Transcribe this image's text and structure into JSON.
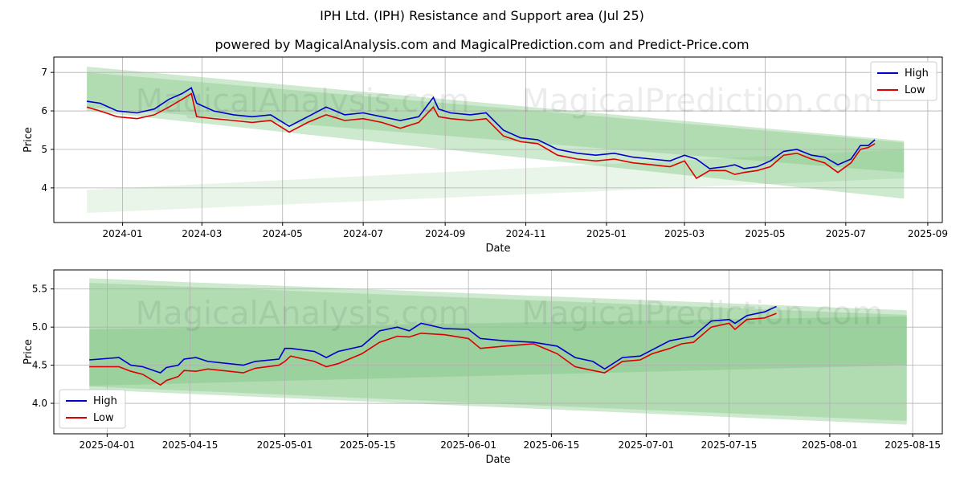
{
  "header": {
    "title": "IPH Ltd. (IPH) Resistance and Support area (Jul 25)",
    "subtitle": "powered by MagicalAnalysis.com and MagicalPrediction.com and Predict-Price.com"
  },
  "watermark": {
    "left": "MagicalAnalysis.com",
    "right": "MagicalPrediction.com"
  },
  "colors": {
    "high": "#0000cc",
    "low": "#dd0000",
    "band": "#4caf50",
    "grid": "#b0b0b0"
  },
  "chart_data": [
    {
      "type": "line",
      "xlabel": "Date",
      "ylabel": "Price",
      "xlim": [
        "2023-11-10",
        "2025-09-12"
      ],
      "ylim": [
        3.1,
        7.4
      ],
      "xticks": [
        "2024-01",
        "2024-03",
        "2024-05",
        "2024-07",
        "2024-09",
        "2024-11",
        "2025-01",
        "2025-03",
        "2025-05",
        "2025-07",
        "2025-09"
      ],
      "yticks": [
        4,
        5,
        6,
        7
      ],
      "legend": {
        "position": "top-right",
        "entries": [
          "High",
          "Low"
        ]
      },
      "bands": [
        {
          "name": "resistance-support-upper",
          "x": [
            "2023-12-05",
            "2025-08-14"
          ],
          "top": [
            7.15,
            5.22
          ],
          "bottom": [
            6.0,
            3.72
          ]
        },
        {
          "name": "resistance-support-upper-inner",
          "x": [
            "2023-12-05",
            "2025-08-14"
          ],
          "top": [
            7.0,
            5.18
          ],
          "bottom": [
            6.1,
            4.4
          ]
        },
        {
          "name": "support-lower",
          "x": [
            "2023-12-05",
            "2025-08-14"
          ],
          "top": [
            3.95,
            5.0
          ],
          "bottom": [
            3.35,
            4.25
          ]
        }
      ],
      "series": [
        {
          "name": "High",
          "x": [
            "2023-12-05",
            "2023-12-15",
            "2023-12-28",
            "2024-01-12",
            "2024-01-25",
            "2024-02-05",
            "2024-02-15",
            "2024-02-22",
            "2024-02-26",
            "2024-03-10",
            "2024-03-25",
            "2024-04-08",
            "2024-04-22",
            "2024-05-06",
            "2024-05-20",
            "2024-06-03",
            "2024-06-17",
            "2024-07-01",
            "2024-07-15",
            "2024-07-29",
            "2024-08-12",
            "2024-08-23",
            "2024-08-27",
            "2024-09-05",
            "2024-09-20",
            "2024-10-02",
            "2024-10-15",
            "2024-10-28",
            "2024-11-10",
            "2024-11-25",
            "2024-12-10",
            "2024-12-24",
            "2025-01-07",
            "2025-01-21",
            "2025-02-04",
            "2025-02-18",
            "2025-03-01",
            "2025-03-10",
            "2025-03-20",
            "2025-04-01",
            "2025-04-08",
            "2025-04-15",
            "2025-04-25",
            "2025-05-05",
            "2025-05-15",
            "2025-05-25",
            "2025-06-05",
            "2025-06-15",
            "2025-06-25",
            "2025-07-05",
            "2025-07-12",
            "2025-07-18",
            "2025-07-23"
          ],
          "values": [
            6.25,
            6.2,
            6.0,
            5.95,
            6.05,
            6.3,
            6.45,
            6.6,
            6.2,
            6.0,
            5.9,
            5.85,
            5.9,
            5.6,
            5.85,
            6.1,
            5.9,
            5.95,
            5.85,
            5.75,
            5.85,
            6.35,
            6.05,
            5.95,
            5.9,
            5.95,
            5.5,
            5.3,
            5.25,
            5.0,
            4.9,
            4.85,
            4.9,
            4.8,
            4.75,
            4.7,
            4.85,
            4.75,
            4.5,
            4.55,
            4.6,
            4.5,
            4.55,
            4.7,
            4.95,
            5.0,
            4.85,
            4.8,
            4.6,
            4.75,
            5.1,
            5.1,
            5.25
          ]
        },
        {
          "name": "Low",
          "x": [
            "2023-12-05",
            "2023-12-15",
            "2023-12-28",
            "2024-01-12",
            "2024-01-25",
            "2024-02-05",
            "2024-02-15",
            "2024-02-22",
            "2024-02-26",
            "2024-03-10",
            "2024-03-25",
            "2024-04-08",
            "2024-04-22",
            "2024-05-06",
            "2024-05-20",
            "2024-06-03",
            "2024-06-17",
            "2024-07-01",
            "2024-07-15",
            "2024-07-29",
            "2024-08-12",
            "2024-08-23",
            "2024-08-27",
            "2024-09-05",
            "2024-09-20",
            "2024-10-02",
            "2024-10-15",
            "2024-10-28",
            "2024-11-10",
            "2024-11-25",
            "2024-12-10",
            "2024-12-24",
            "2025-01-07",
            "2025-01-21",
            "2025-02-04",
            "2025-02-18",
            "2025-03-01",
            "2025-03-10",
            "2025-03-20",
            "2025-04-01",
            "2025-04-08",
            "2025-04-15",
            "2025-04-25",
            "2025-05-05",
            "2025-05-15",
            "2025-05-25",
            "2025-06-05",
            "2025-06-15",
            "2025-06-25",
            "2025-07-05",
            "2025-07-12",
            "2025-07-18",
            "2025-07-23"
          ],
          "values": [
            6.1,
            6.0,
            5.85,
            5.8,
            5.9,
            6.1,
            6.3,
            6.45,
            5.85,
            5.8,
            5.75,
            5.7,
            5.75,
            5.45,
            5.7,
            5.9,
            5.75,
            5.8,
            5.7,
            5.55,
            5.7,
            6.1,
            5.85,
            5.8,
            5.75,
            5.8,
            5.35,
            5.2,
            5.15,
            4.85,
            4.75,
            4.7,
            4.75,
            4.65,
            4.6,
            4.55,
            4.7,
            4.25,
            4.45,
            4.45,
            4.35,
            4.4,
            4.45,
            4.55,
            4.85,
            4.9,
            4.75,
            4.65,
            4.4,
            4.65,
            5.0,
            5.05,
            5.15
          ]
        }
      ]
    },
    {
      "type": "line",
      "xlabel": "Date",
      "ylabel": "Price",
      "xlim": [
        "2025-03-23",
        "2025-08-20"
      ],
      "ylim": [
        3.6,
        5.75
      ],
      "xticks": [
        "2025-04-01",
        "2025-04-15",
        "2025-05-01",
        "2025-05-15",
        "2025-06-01",
        "2025-06-15",
        "2025-07-01",
        "2025-07-15",
        "2025-08-01",
        "2025-08-15"
      ],
      "yticks": [
        4.0,
        4.5,
        5.0,
        5.5
      ],
      "legend": {
        "position": "lower-left",
        "entries": [
          "High",
          "Low"
        ]
      },
      "bands": [
        {
          "name": "outer-band",
          "x": [
            "2025-03-29",
            "2025-08-14"
          ],
          "top": [
            5.64,
            5.22
          ],
          "bottom": [
            4.18,
            3.72
          ]
        },
        {
          "name": "inner-band",
          "x": [
            "2025-03-29",
            "2025-08-14"
          ],
          "top": [
            5.58,
            5.16
          ],
          "bottom": [
            4.22,
            3.77
          ]
        },
        {
          "name": "core-band",
          "x": [
            "2025-03-29",
            "2025-08-14"
          ],
          "top": [
            4.97,
            5.14
          ],
          "bottom": [
            4.23,
            4.5
          ]
        }
      ],
      "series": [
        {
          "name": "High",
          "x": [
            "2025-03-29",
            "2025-04-03",
            "2025-04-05",
            "2025-04-07",
            "2025-04-10",
            "2025-04-11",
            "2025-04-13",
            "2025-04-14",
            "2025-04-16",
            "2025-04-18",
            "2025-04-24",
            "2025-04-26",
            "2025-04-30",
            "2025-05-01",
            "2025-05-02",
            "2025-05-06",
            "2025-05-08",
            "2025-05-10",
            "2025-05-14",
            "2025-05-17",
            "2025-05-20",
            "2025-05-22",
            "2025-05-24",
            "2025-05-28",
            "2025-06-01",
            "2025-06-03",
            "2025-06-07",
            "2025-06-12",
            "2025-06-16",
            "2025-06-19",
            "2025-06-22",
            "2025-06-24",
            "2025-06-27",
            "2025-06-30",
            "2025-07-02",
            "2025-07-05",
            "2025-07-07",
            "2025-07-09",
            "2025-07-12",
            "2025-07-15",
            "2025-07-16",
            "2025-07-18",
            "2025-07-21",
            "2025-07-23"
          ],
          "values": [
            4.57,
            4.6,
            4.5,
            4.48,
            4.4,
            4.47,
            4.5,
            4.58,
            4.6,
            4.55,
            4.5,
            4.55,
            4.58,
            4.72,
            4.72,
            4.68,
            4.6,
            4.68,
            4.75,
            4.95,
            5.0,
            4.95,
            5.05,
            4.98,
            4.97,
            4.85,
            4.82,
            4.8,
            4.75,
            4.6,
            4.55,
            4.45,
            4.6,
            4.62,
            4.7,
            4.82,
            4.85,
            4.88,
            5.08,
            5.1,
            5.05,
            5.15,
            5.2,
            5.27
          ]
        },
        {
          "name": "Low",
          "x": [
            "2025-03-29",
            "2025-04-03",
            "2025-04-05",
            "2025-04-07",
            "2025-04-10",
            "2025-04-11",
            "2025-04-13",
            "2025-04-14",
            "2025-04-16",
            "2025-04-18",
            "2025-04-24",
            "2025-04-26",
            "2025-04-30",
            "2025-05-01",
            "2025-05-02",
            "2025-05-06",
            "2025-05-08",
            "2025-05-10",
            "2025-05-14",
            "2025-05-17",
            "2025-05-20",
            "2025-05-22",
            "2025-05-24",
            "2025-05-28",
            "2025-06-01",
            "2025-06-03",
            "2025-06-07",
            "2025-06-12",
            "2025-06-16",
            "2025-06-19",
            "2025-06-22",
            "2025-06-24",
            "2025-06-27",
            "2025-06-30",
            "2025-07-02",
            "2025-07-05",
            "2025-07-07",
            "2025-07-09",
            "2025-07-12",
            "2025-07-15",
            "2025-07-16",
            "2025-07-18",
            "2025-07-21",
            "2025-07-23"
          ],
          "values": [
            4.48,
            4.48,
            4.42,
            4.38,
            4.24,
            4.3,
            4.35,
            4.43,
            4.42,
            4.45,
            4.4,
            4.46,
            4.5,
            4.55,
            4.62,
            4.55,
            4.48,
            4.52,
            4.65,
            4.8,
            4.88,
            4.87,
            4.92,
            4.9,
            4.85,
            4.72,
            4.75,
            4.78,
            4.65,
            4.48,
            4.43,
            4.4,
            4.55,
            4.57,
            4.65,
            4.72,
            4.78,
            4.8,
            5.0,
            5.05,
            4.97,
            5.1,
            5.12,
            5.18
          ]
        }
      ]
    }
  ]
}
